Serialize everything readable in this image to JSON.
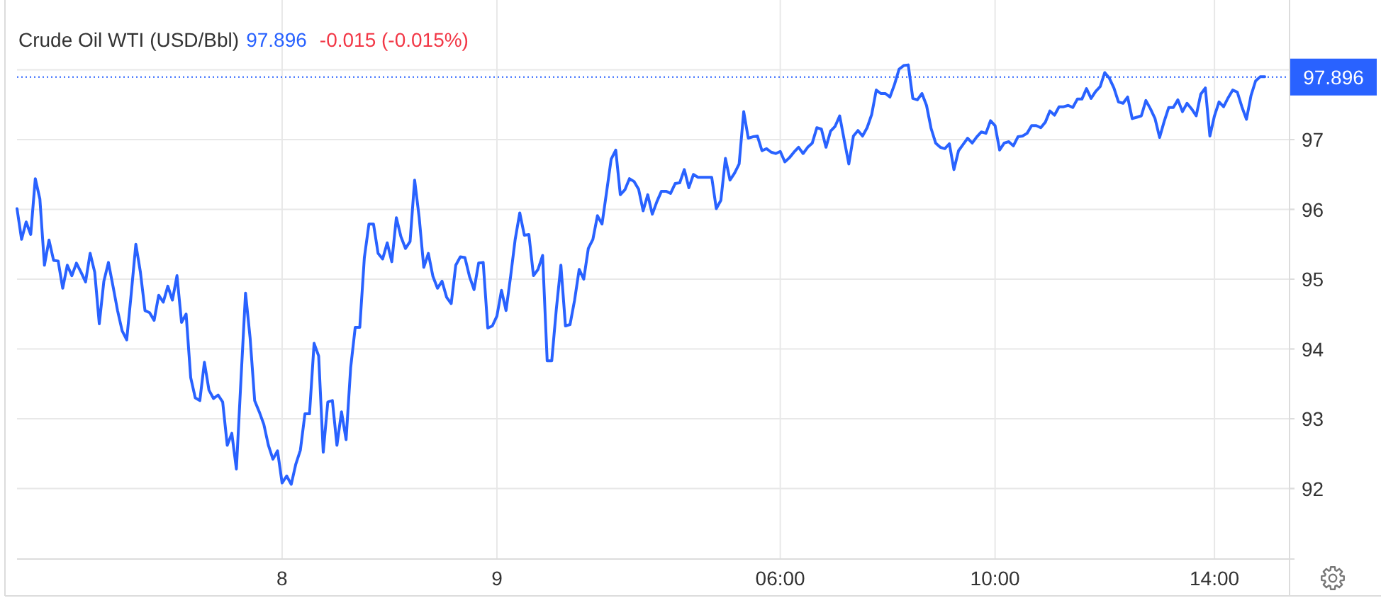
{
  "chart_data": {
    "type": "line",
    "title": "Crude Oil WTI (USD/Bbl)",
    "annotations": [
      "97.896",
      "-0.015 (-0.015%)"
    ],
    "categories": [
      null,
      null,
      null,
      null,
      null,
      null,
      null,
      null,
      null,
      null,
      null,
      null,
      null,
      null,
      null,
      null,
      null,
      null,
      null,
      null,
      null,
      null,
      null,
      null,
      null,
      null,
      null,
      null,
      null,
      null,
      null,
      null,
      null,
      null,
      null,
      null,
      null,
      null,
      null,
      null,
      null,
      null,
      null,
      null,
      null,
      null,
      null,
      null,
      null,
      null,
      null,
      null,
      null,
      null,
      null,
      null,
      null,
      null,
      "8",
      null,
      null,
      null,
      null,
      null,
      null,
      null,
      null,
      null,
      null,
      null,
      null,
      null,
      null,
      null,
      null,
      null,
      null,
      null,
      null,
      null,
      null,
      null,
      null,
      null,
      null,
      null,
      null,
      null,
      null,
      null,
      null,
      null,
      null,
      null,
      null,
      null,
      null,
      null,
      null,
      null,
      null,
      null,
      null,
      null,
      null,
      "9",
      null,
      null,
      null,
      null,
      null,
      null,
      null,
      null,
      null,
      null,
      null,
      null,
      null,
      null,
      null,
      null,
      null,
      null,
      null,
      null,
      null,
      null,
      null,
      null,
      null,
      null,
      null,
      null,
      null,
      null,
      null,
      null,
      null,
      null,
      null,
      null,
      null,
      null,
      null,
      null,
      null,
      null,
      null,
      null,
      null,
      null,
      null,
      null,
      null,
      null,
      null,
      null,
      null,
      null,
      null,
      null,
      null,
      null,
      null,
      null,
      null,
      "06:00",
      null,
      null,
      null,
      null,
      null,
      null,
      null,
      null,
      null,
      null,
      null,
      null,
      null,
      null,
      null,
      null,
      null,
      null,
      null,
      null,
      null,
      null,
      null,
      null,
      null,
      null,
      null,
      null,
      null,
      null,
      null,
      null,
      null,
      null,
      null,
      null,
      null,
      null,
      null,
      null,
      null,
      null,
      null,
      null,
      null,
      null,
      "10:00",
      null,
      null,
      null,
      null,
      null,
      null,
      null,
      null,
      null,
      null,
      null,
      null,
      null,
      null,
      null,
      null,
      null,
      null,
      null,
      null,
      null,
      null,
      null,
      null,
      null,
      null,
      null,
      null,
      null,
      null,
      null,
      null,
      null,
      null,
      null,
      null,
      null,
      null,
      null,
      null,
      null,
      null,
      null,
      null,
      null,
      null,
      null,
      "14:00",
      null,
      null,
      null,
      null,
      null,
      null,
      null,
      null,
      null,
      null,
      null
    ],
    "series": [
      {
        "color": "#2962ff",
        "values": [
          96.01,
          95.57,
          95.82,
          95.64,
          96.44,
          96.15,
          95.2,
          95.56,
          95.27,
          95.26,
          94.87,
          95.2,
          95.05,
          95.23,
          95.1,
          94.96,
          95.37,
          95.1,
          94.36,
          94.97,
          95.24,
          94.9,
          94.55,
          94.26,
          94.13,
          94.8,
          95.5,
          95.1,
          94.55,
          94.52,
          94.41,
          94.77,
          94.67,
          94.9,
          94.7,
          95.05,
          94.38,
          94.5,
          93.59,
          93.3,
          93.26,
          93.81,
          93.41,
          93.29,
          93.34,
          93.24,
          92.62,
          92.79,
          92.28,
          93.56,
          94.8,
          94.16,
          93.26,
          93.1,
          92.92,
          92.62,
          92.42,
          92.54,
          92.08,
          92.18,
          92.06,
          92.35,
          92.55,
          93.07,
          93.07,
          94.08,
          93.9,
          92.52,
          93.24,
          93.26,
          92.62,
          93.1,
          92.7,
          93.73,
          94.31,
          94.31,
          95.31,
          95.79,
          95.79,
          95.37,
          95.29,
          95.52,
          95.25,
          95.88,
          95.61,
          95.44,
          95.54,
          96.42,
          95.88,
          95.17,
          95.37,
          95.04,
          94.87,
          94.97,
          94.74,
          94.65,
          95.2,
          95.32,
          95.31,
          95.04,
          94.85,
          95.23,
          95.24,
          94.3,
          94.33,
          94.47,
          94.84,
          94.55,
          95.04,
          95.57,
          95.95,
          95.63,
          95.64,
          95.05,
          95.14,
          95.34,
          93.83,
          93.83,
          94.57,
          95.2,
          94.33,
          94.35,
          94.7,
          95.14,
          95.0,
          95.44,
          95.57,
          95.91,
          95.79,
          96.25,
          96.72,
          96.85,
          96.21,
          96.28,
          96.44,
          96.4,
          96.29,
          95.98,
          96.21,
          95.93,
          96.11,
          96.26,
          96.26,
          96.23,
          96.37,
          96.38,
          96.57,
          96.31,
          96.5,
          96.46,
          96.46,
          96.46,
          96.46,
          96.01,
          96.13,
          96.73,
          96.42,
          96.52,
          96.65,
          97.4,
          97.02,
          97.04,
          97.05,
          96.84,
          96.87,
          96.82,
          96.8,
          96.83,
          96.68,
          96.74,
          96.82,
          96.89,
          96.8,
          96.89,
          96.95,
          97.17,
          97.15,
          96.89,
          97.12,
          97.19,
          97.34,
          96.99,
          96.65,
          97.05,
          97.13,
          97.05,
          97.17,
          97.36,
          97.71,
          97.66,
          97.66,
          97.61,
          97.79,
          98.01,
          98.06,
          98.07,
          97.59,
          97.57,
          97.66,
          97.49,
          97.16,
          96.95,
          96.89,
          96.87,
          96.94,
          96.57,
          96.84,
          96.93,
          97.02,
          96.95,
          97.04,
          97.11,
          97.09,
          97.27,
          97.2,
          96.85,
          96.95,
          96.97,
          96.91,
          97.04,
          97.05,
          97.09,
          97.2,
          97.2,
          97.17,
          97.25,
          97.41,
          97.35,
          97.47,
          97.47,
          97.49,
          97.46,
          97.58,
          97.58,
          97.73,
          97.59,
          97.69,
          97.76,
          97.96,
          97.88,
          97.74,
          97.54,
          97.52,
          97.61,
          97.3,
          97.32,
          97.34,
          97.56,
          97.44,
          97.3,
          97.03,
          97.26,
          97.46,
          97.46,
          97.57,
          97.4,
          97.52,
          97.44,
          97.34,
          97.65,
          97.74,
          97.05,
          97.34,
          97.54,
          97.47,
          97.6,
          97.71,
          97.68,
          97.47,
          97.29,
          97.63,
          97.84,
          97.9,
          97.9
        ]
      }
    ],
    "ylim": [
      91,
      99
    ],
    "yticks": [
      92,
      93,
      94,
      95,
      96,
      97,
      {
        "value": 98,
        "label": null
      }
    ],
    "grid": true,
    "ref_lines": [
      {
        "axis": "y",
        "value": 97.896,
        "label": "97.896",
        "color": "#2962ff",
        "line_style": "dotted"
      }
    ]
  }
}
